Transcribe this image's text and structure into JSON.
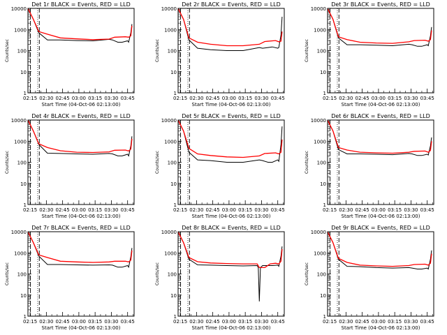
{
  "figure": {
    "x_tick_labels": [
      "02:15",
      "02:30",
      "02:45",
      "03:00",
      "03:15",
      "03:30",
      "03:45"
    ],
    "y_tick_labels": [
      "1",
      "10",
      "100",
      "1000",
      "10000"
    ],
    "ylabel": "Counts/sec",
    "xlabel": "Start Time (04-Oct-06 02:13:00)",
    "colors": {
      "events": "#000000",
      "lld": "#ff0000",
      "axes": "#000000",
      "background": "#ffffff"
    }
  },
  "chart_data": [
    {
      "type": "line",
      "title": "Det 1r BLACK = Events, RED = LLD",
      "xlabel": "Start Time (04-Oct-06 02:13:00)",
      "ylabel": "Counts/sec",
      "x_unit": "minutes since 02:13",
      "xlim": [
        0,
        98
      ],
      "ylim": [
        1,
        10000
      ],
      "y_scale": "log",
      "marker_lines": {
        "dotted": [
          2.2,
          9
        ],
        "dashed": [
          2.3,
          10.5
        ]
      },
      "series": [
        {
          "name": "Events",
          "color": "#000000",
          "x": [
            0,
            5,
            10,
            18,
            30,
            45,
            60,
            75,
            78,
            83,
            87,
            92,
            93,
            95,
            96
          ],
          "y": [
            10000,
            3000,
            700,
            320,
            320,
            300,
            290,
            340,
            320,
            250,
            250,
            290,
            250,
            700,
            1800
          ]
        },
        {
          "name": "LLD",
          "color": "#ff0000",
          "x": [
            0,
            5,
            10,
            18,
            30,
            45,
            60,
            75,
            80,
            90,
            93,
            95,
            96
          ],
          "y": [
            10000,
            3000,
            800,
            600,
            400,
            360,
            330,
            350,
            430,
            450,
            430,
            500,
            1500
          ]
        }
      ]
    },
    {
      "type": "line",
      "title": "Det 2r BLACK = Events, RED = LLD",
      "xlabel": "Start Time (04-Oct-06 02:13:00)",
      "ylabel": "Counts/sec",
      "x_unit": "minutes since 02:13",
      "xlim": [
        0,
        98
      ],
      "ylim": [
        1,
        10000
      ],
      "y_scale": "log",
      "marker_lines": {
        "dotted": [
          2.2,
          9
        ],
        "dashed": [
          2.3,
          10.5
        ]
      },
      "series": [
        {
          "name": "Events",
          "color": "#000000",
          "x": [
            0,
            5,
            10,
            18,
            30,
            45,
            60,
            75,
            78,
            83,
            87,
            92,
            93,
            95,
            96
          ],
          "y": [
            10000,
            3000,
            320,
            130,
            110,
            100,
            100,
            140,
            130,
            140,
            150,
            130,
            140,
            550,
            4000
          ]
        },
        {
          "name": "LLD",
          "color": "#ff0000",
          "x": [
            0,
            5,
            10,
            18,
            30,
            45,
            60,
            75,
            80,
            90,
            93,
            95,
            96
          ],
          "y": [
            10000,
            3000,
            400,
            250,
            200,
            170,
            170,
            200,
            270,
            300,
            260,
            280,
            800
          ]
        }
      ]
    },
    {
      "type": "line",
      "title": "Det 3r BLACK = Events, RED = LLD",
      "xlabel": "Start Time (04-Oct-06 02:13:00)",
      "ylabel": "Counts/sec",
      "x_unit": "minutes since 02:13",
      "xlim": [
        0,
        98
      ],
      "ylim": [
        1,
        10000
      ],
      "y_scale": "log",
      "marker_lines": {
        "dotted": [
          2.2,
          9
        ],
        "dashed": [
          2.3,
          10.5
        ]
      },
      "series": [
        {
          "name": "Events",
          "color": "#000000",
          "x": [
            0,
            5,
            10,
            18,
            30,
            45,
            60,
            75,
            78,
            83,
            87,
            92,
            93,
            95,
            96
          ],
          "y": [
            10000,
            3000,
            400,
            190,
            190,
            180,
            170,
            200,
            190,
            160,
            160,
            190,
            170,
            500,
            1300
          ]
        },
        {
          "name": "LLD",
          "color": "#ff0000",
          "x": [
            0,
            5,
            10,
            18,
            30,
            45,
            60,
            75,
            80,
            90,
            93,
            95,
            96
          ],
          "y": [
            10000,
            3000,
            450,
            330,
            250,
            230,
            220,
            260,
            300,
            310,
            280,
            330,
            900
          ]
        }
      ]
    },
    {
      "type": "line",
      "title": "Det 4r BLACK = Events, RED = LLD",
      "xlabel": "Start Time (04-Oct-06 02:13:00)",
      "ylabel": "Counts/sec",
      "x_unit": "minutes since 02:13",
      "xlim": [
        0,
        98
      ],
      "ylim": [
        1,
        10000
      ],
      "y_scale": "log",
      "marker_lines": {
        "dotted": [
          2.2,
          9
        ],
        "dashed": [
          2.3,
          10.5
        ]
      },
      "series": [
        {
          "name": "Events",
          "color": "#000000",
          "x": [
            0,
            5,
            10,
            18,
            30,
            45,
            60,
            75,
            78,
            83,
            87,
            92,
            93,
            95,
            96
          ],
          "y": [
            10000,
            3000,
            700,
            270,
            260,
            250,
            240,
            260,
            250,
            200,
            200,
            240,
            200,
            600,
            1700
          ]
        },
        {
          "name": "LLD",
          "color": "#ff0000",
          "x": [
            0,
            5,
            10,
            18,
            30,
            45,
            60,
            75,
            80,
            90,
            93,
            95,
            96
          ],
          "y": [
            10000,
            3000,
            750,
            500,
            350,
            300,
            290,
            310,
            370,
            380,
            340,
            420,
            1300
          ]
        }
      ]
    },
    {
      "type": "line",
      "title": "Det 5r BLACK = Events, RED = LLD",
      "xlabel": "Start Time (04-Oct-06 02:13:00)",
      "ylabel": "Counts/sec",
      "x_unit": "minutes since 02:13",
      "xlim": [
        0,
        98
      ],
      "ylim": [
        1,
        10000
      ],
      "y_scale": "log",
      "marker_lines": {
        "dotted": [
          2.2,
          9
        ],
        "dashed": [
          2.3,
          10.5
        ]
      },
      "series": [
        {
          "name": "Events",
          "color": "#000000",
          "x": [
            0,
            5,
            10,
            18,
            30,
            45,
            60,
            75,
            78,
            83,
            87,
            92,
            93,
            95,
            96
          ],
          "y": [
            10000,
            3000,
            300,
            130,
            120,
            100,
            100,
            130,
            120,
            100,
            100,
            130,
            110,
            700,
            5000
          ]
        },
        {
          "name": "LLD",
          "color": "#ff0000",
          "x": [
            0,
            5,
            10,
            18,
            30,
            45,
            60,
            75,
            80,
            90,
            93,
            95,
            96
          ],
          "y": [
            10000,
            3000,
            450,
            250,
            210,
            180,
            170,
            200,
            260,
            280,
            250,
            300,
            1200
          ]
        }
      ]
    },
    {
      "type": "line",
      "title": "Det 6r BLACK = Events, RED = LLD",
      "xlabel": "Start Time (04-Oct-06 02:13:00)",
      "ylabel": "Counts/sec",
      "x_unit": "minutes since 02:13",
      "xlim": [
        0,
        98
      ],
      "ylim": [
        1,
        10000
      ],
      "y_scale": "log",
      "marker_lines": {
        "dotted": [
          2.2,
          9
        ],
        "dashed": [
          2.3,
          10.5
        ]
      },
      "series": [
        {
          "name": "Events",
          "color": "#000000",
          "x": [
            0,
            5,
            10,
            18,
            30,
            45,
            60,
            75,
            78,
            83,
            87,
            92,
            93,
            95,
            96
          ],
          "y": [
            10000,
            3000,
            400,
            250,
            250,
            240,
            230,
            260,
            250,
            210,
            210,
            240,
            220,
            600,
            1500
          ]
        },
        {
          "name": "LLD",
          "color": "#ff0000",
          "x": [
            0,
            5,
            10,
            18,
            30,
            45,
            60,
            75,
            80,
            90,
            93,
            95,
            96
          ],
          "y": [
            10000,
            3000,
            500,
            380,
            300,
            280,
            270,
            300,
            330,
            340,
            300,
            360,
            1000
          ]
        }
      ]
    },
    {
      "type": "line",
      "title": "Det 7r BLACK = Events, RED = LLD",
      "xlabel": "Start Time (04-Oct-06 02:13:00)",
      "ylabel": "Counts/sec",
      "x_unit": "minutes since 02:13",
      "xlim": [
        0,
        98
      ],
      "ylim": [
        1,
        10000
      ],
      "y_scale": "log",
      "marker_lines": {
        "dotted": [
          2.2,
          9
        ],
        "dashed": [
          2.3,
          10.5
        ]
      },
      "series": [
        {
          "name": "Events",
          "color": "#000000",
          "x": [
            0,
            5,
            10,
            18,
            30,
            45,
            60,
            75,
            78,
            83,
            87,
            92,
            93,
            95,
            96
          ],
          "y": [
            10000,
            3000,
            700,
            280,
            280,
            270,
            260,
            270,
            260,
            210,
            210,
            250,
            210,
            650,
            1700
          ]
        },
        {
          "name": "LLD",
          "color": "#ff0000",
          "x": [
            0,
            5,
            10,
            18,
            30,
            45,
            60,
            75,
            80,
            90,
            93,
            95,
            96
          ],
          "y": [
            10000,
            3000,
            800,
            600,
            400,
            370,
            350,
            370,
            400,
            400,
            370,
            450,
            1300
          ]
        }
      ]
    },
    {
      "type": "line",
      "title": "Det 8r BLACK = Events, RED = LLD",
      "xlabel": "Start Time (04-Oct-06 02:13:00)",
      "ylabel": "Counts/sec",
      "x_unit": "minutes since 02:13",
      "xlim": [
        0,
        98
      ],
      "ylim": [
        1,
        10000
      ],
      "y_scale": "log",
      "marker_lines": {
        "dotted": [
          2.2,
          9
        ],
        "dashed": [
          2.3,
          10.5
        ]
      },
      "series": [
        {
          "name": "Events",
          "color": "#000000",
          "x": [
            0,
            5,
            10,
            18,
            30,
            45,
            60,
            73,
            74,
            75,
            76,
            78,
            83,
            87,
            92,
            93,
            95,
            96
          ],
          "y": [
            10000,
            3000,
            500,
            270,
            260,
            250,
            240,
            250,
            200,
            5,
            200,
            250,
            250,
            250,
            260,
            230,
            700,
            2000
          ]
        },
        {
          "name": "LLD",
          "color": "#ff0000",
          "x": [
            0,
            5,
            10,
            18,
            30,
            45,
            60,
            73,
            75,
            80,
            85,
            90,
            93,
            95,
            96
          ],
          "y": [
            10000,
            3000,
            600,
            380,
            330,
            310,
            300,
            300,
            200,
            200,
            300,
            320,
            300,
            400,
            1500
          ]
        }
      ]
    },
    {
      "type": "line",
      "title": "Det 9r BLACK = Events, RED = LLD",
      "xlabel": "Start Time (04-Oct-06 02:13:00)",
      "ylabel": "Counts/sec",
      "x_unit": "minutes since 02:13",
      "xlim": [
        0,
        98
      ],
      "ylim": [
        1,
        10000
      ],
      "y_scale": "log",
      "marker_lines": {
        "dotted": [
          2.2,
          9
        ],
        "dashed": [
          2.3,
          10.5
        ]
      },
      "series": [
        {
          "name": "Events",
          "color": "#000000",
          "x": [
            0,
            5,
            10,
            18,
            30,
            45,
            60,
            75,
            78,
            83,
            87,
            92,
            93,
            95,
            96
          ],
          "y": [
            10000,
            3000,
            500,
            230,
            220,
            200,
            190,
            200,
            190,
            170,
            170,
            190,
            170,
            500,
            1300
          ]
        },
        {
          "name": "LLD",
          "color": "#ff0000",
          "x": [
            0,
            5,
            10,
            18,
            30,
            45,
            60,
            75,
            80,
            90,
            93,
            95,
            96
          ],
          "y": [
            10000,
            3000,
            550,
            350,
            260,
            240,
            230,
            250,
            280,
            290,
            260,
            320,
            900
          ]
        }
      ]
    }
  ]
}
